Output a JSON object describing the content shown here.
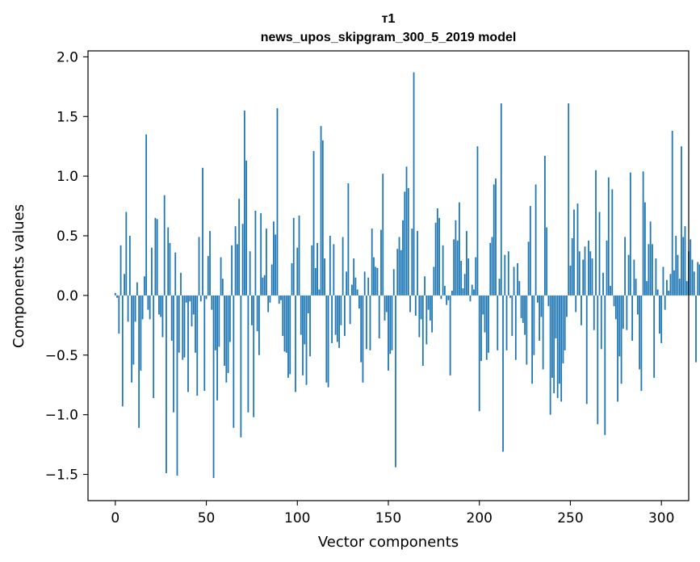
{
  "chart_data": {
    "type": "bar",
    "title_lines": [
      "т1",
      "news_upos_skipgram_300_5_2019 model"
    ],
    "xlabel": "Vector components",
    "ylabel": "Components values",
    "xlim": [
      -15,
      315
    ],
    "ylim": [
      -1.72,
      2.05
    ],
    "xticks": [
      {
        "value": 0,
        "label": "0"
      },
      {
        "value": 50,
        "label": "50"
      },
      {
        "value": 100,
        "label": "100"
      },
      {
        "value": 150,
        "label": "150"
      },
      {
        "value": 200,
        "label": "200"
      },
      {
        "value": 250,
        "label": "250"
      },
      {
        "value": 300,
        "label": "300"
      }
    ],
    "yticks": [
      {
        "value": -1.5,
        "label": "−1.5"
      },
      {
        "value": -1.0,
        "label": "−1.0"
      },
      {
        "value": -0.5,
        "label": "−0.5"
      },
      {
        "value": 0.0,
        "label": "0.0"
      },
      {
        "value": 0.5,
        "label": "0.5"
      },
      {
        "value": 1.0,
        "label": "1.0"
      },
      {
        "value": 1.5,
        "label": "1.5"
      },
      {
        "value": 2.0,
        "label": "2.0"
      }
    ],
    "bar_color": "#1f77b4",
    "grid": false,
    "categories_start": 0,
    "values": [
      0.02,
      -0.02,
      -0.32,
      0.42,
      -0.93,
      0.18,
      0.7,
      -0.22,
      0.5,
      -0.73,
      -0.58,
      -0.22,
      0.11,
      -1.11,
      -0.63,
      -0.2,
      0.16,
      1.35,
      -0.12,
      -0.2,
      0.4,
      -0.86,
      0.65,
      0.64,
      -0.16,
      -0.18,
      -0.35,
      0.84,
      -1.49,
      0.57,
      0.44,
      -0.38,
      -0.98,
      0.36,
      -1.51,
      -0.48,
      0.19,
      -0.54,
      -0.52,
      -0.06,
      -0.81,
      -0.05,
      -0.26,
      -0.16,
      -0.48,
      -0.84,
      0.49,
      -0.05,
      1.07,
      -0.8,
      -0.03,
      0.33,
      0.54,
      -0.12,
      -1.53,
      -0.46,
      -0.88,
      -0.43,
      0.32,
      0.14,
      -0.59,
      -0.73,
      -0.65,
      -0.39,
      0.42,
      -1.11,
      0.58,
      0.43,
      0.81,
      -1.19,
      0.6,
      1.55,
      1.13,
      -0.98,
      0.37,
      -0.25,
      -1.02,
      0.71,
      -0.3,
      -0.5,
      0.69,
      0.15,
      0.17,
      0.56,
      -0.14,
      -0.06,
      0.26,
      0.62,
      0.51,
      1.57,
      -0.07,
      -0.04,
      -0.34,
      -0.47,
      -0.48,
      -0.69,
      -0.66,
      0.27,
      0.65,
      -0.81,
      0.4,
      0.67,
      -0.33,
      -0.67,
      -0.41,
      -0.75,
      -0.15,
      -0.51,
      0.42,
      1.21,
      0.23,
      0.44,
      0.05,
      1.42,
      1.3,
      0.31,
      -0.73,
      -0.77,
      0.5,
      -0.4,
      0.43,
      -0.33,
      -0.39,
      -0.44,
      -0.25,
      0.49,
      -0.34,
      0.2,
      0.94,
      -0.24,
      0.09,
      0.31,
      0.15,
      0.05,
      -0.11,
      -0.56,
      -0.73,
      0.2,
      -0.45,
      0.15,
      -0.46,
      0.56,
      0.32,
      0.24,
      0.23,
      -0.36,
      0.55,
      1.02,
      -0.21,
      -0.14,
      -0.63,
      -0.49,
      -0.46,
      0.22,
      -1.44,
      0.39,
      0.49,
      0.38,
      0.63,
      0.87,
      1.08,
      0.9,
      -0.14,
      0.56,
      1.87,
      -0.17,
      0.54,
      -0.35,
      -0.2,
      -0.59,
      0.16,
      -0.41,
      -0.12,
      -0.21,
      -0.31,
      0.24,
      0.61,
      0.73,
      0.65,
      -0.03,
      0.42,
      0.08,
      -0.08,
      -0.04,
      -0.67,
      0.04,
      0.47,
      0.63,
      0.46,
      0.78,
      0.29,
      0.06,
      0.18,
      0.54,
      0.31,
      -0.05,
      0.09,
      0.05,
      0.32,
      1.25,
      -0.97,
      -0.55,
      -0.16,
      -0.31,
      -0.54,
      -0.48,
      0.44,
      0.49,
      0.93,
      0.98,
      -0.46,
      0.14,
      1.61,
      -1.31,
      0.34,
      -0.46,
      0.37,
      -0.02,
      -0.34,
      0.24,
      -0.54,
      0.27,
      0.12,
      -0.19,
      -0.23,
      -0.33,
      -0.58,
      0.45,
      0.75,
      -0.74,
      -0.5,
      0.93,
      -0.06,
      -0.38,
      -0.18,
      -0.62,
      1.17,
      0.57,
      -0.09,
      -1.0,
      -0.69,
      -0.82,
      -0.36,
      -0.86,
      -0.74,
      -0.89,
      -0.57,
      -0.46,
      -0.18,
      1.61,
      0.25,
      0.48,
      0.72,
      -0.14,
      0.77,
      0.37,
      -0.25,
      0.3,
      0.41,
      -0.91,
      0.46,
      0.37,
      0.31,
      -0.29,
      1.05,
      -1.08,
      0.7,
      -0.45,
      0.19,
      -1.17,
      0.46,
      0.99,
      0.08,
      0.89,
      -0.09,
      -0.2,
      -0.89,
      -0.51,
      -0.74,
      -0.28,
      0.49,
      -0.29,
      0.34,
      1.03,
      -0.38,
      0.3,
      0.14,
      -0.16,
      -0.62,
      -0.8,
      1.04,
      0.78,
      0.12,
      0.43,
      0.62,
      0.43,
      -0.69,
      0.31,
      0.05,
      -0.32,
      -0.4,
      0.24,
      -0.12,
      0.13,
      0.04,
      0.18,
      1.38,
      0.21,
      0.5,
      0.34,
      0.14,
      1.25,
      0.49,
      0.58,
      0.12,
      0.37,
      0.47,
      0.3,
      0.2,
      -0.56,
      0.28,
      0.26
    ]
  }
}
